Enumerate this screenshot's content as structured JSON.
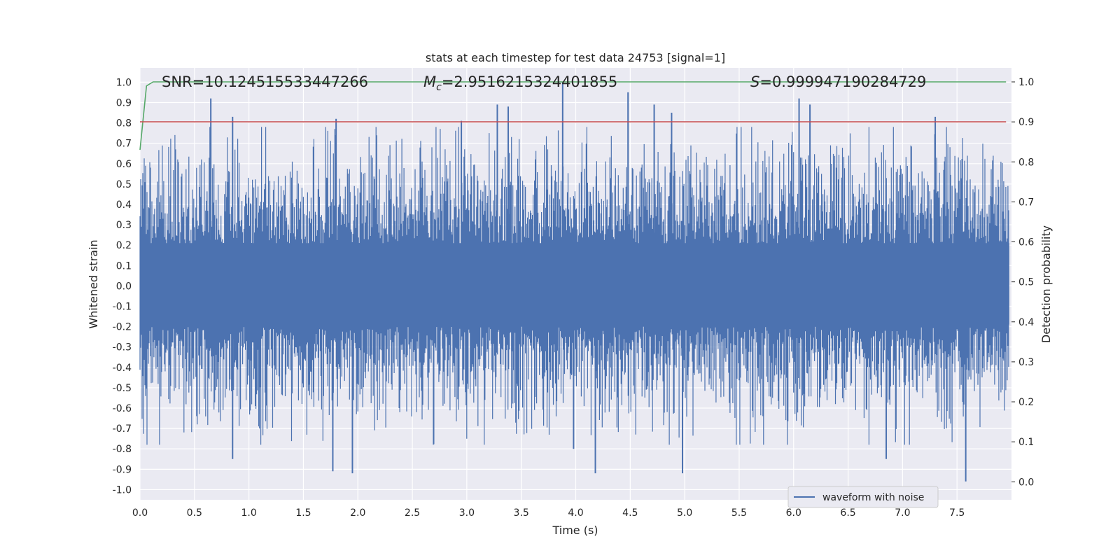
{
  "chart_data": {
    "type": "line",
    "title": "stats at each timestep for test data 24753 [signal=1]",
    "xlabel": "Time (s)",
    "ylabel": "Whitened strain",
    "y2label": "Detection probability",
    "xlim": [
      0.0,
      8.0
    ],
    "ylim": [
      -1.05,
      1.07
    ],
    "y2lim": [
      -0.045,
      1.035
    ],
    "x_ticks": [
      0.0,
      0.5,
      1.0,
      1.5,
      2.0,
      2.5,
      3.0,
      3.5,
      4.0,
      4.5,
      5.0,
      5.5,
      6.0,
      6.5,
      7.0,
      7.5
    ],
    "x_tick_labels": [
      "0.0",
      "0.5",
      "1.0",
      "1.5",
      "2.0",
      "2.5",
      "3.0",
      "3.5",
      "4.0",
      "4.5",
      "5.0",
      "5.5",
      "6.0",
      "6.5",
      "7.0",
      "7.5"
    ],
    "y_ticks": [
      1.0,
      0.9,
      0.8,
      0.7,
      0.6,
      0.5,
      0.4,
      0.3,
      0.2,
      0.1,
      0.0,
      -0.1,
      -0.2,
      -0.3,
      -0.4,
      -0.5,
      -0.6,
      -0.7,
      -0.8,
      -0.9,
      -1.0
    ],
    "y_tick_labels": [
      "1.0",
      "0.9",
      "0.8",
      "0.7",
      "0.6",
      "0.5",
      "0.4",
      "0.3",
      "0.2",
      "0.1",
      "0.0",
      "-0.1",
      "-0.2",
      "-0.3",
      "-0.4",
      "-0.5",
      "-0.6",
      "-0.7",
      "-0.8",
      "-0.9",
      "-1.0"
    ],
    "y2_ticks": [
      1.0,
      0.9,
      0.8,
      0.7,
      0.6,
      0.5,
      0.4,
      0.3,
      0.2,
      0.1,
      0.0
    ],
    "y2_tick_labels": [
      "1.0",
      "0.9",
      "0.8",
      "0.7",
      "0.6",
      "0.5",
      "0.4",
      "0.3",
      "0.2",
      "0.1",
      "0.0"
    ],
    "grid": true,
    "legend": "bottom-right",
    "series": [
      {
        "name": "waveform with noise",
        "axis": "left",
        "color": "#4c72b0",
        "style": "dense-noise",
        "amplitude_typical": 0.45,
        "peaks": [
          {
            "x": 0.65,
            "y": 0.92
          },
          {
            "x": 0.85,
            "y": 0.83
          },
          {
            "x": 1.8,
            "y": 0.82
          },
          {
            "x": 2.95,
            "y": 0.81
          },
          {
            "x": 3.28,
            "y": 0.89
          },
          {
            "x": 3.38,
            "y": 0.88
          },
          {
            "x": 3.88,
            "y": 1.0
          },
          {
            "x": 4.48,
            "y": 0.95
          },
          {
            "x": 4.72,
            "y": 0.89
          },
          {
            "x": 4.88,
            "y": 0.85
          },
          {
            "x": 6.05,
            "y": 0.92
          },
          {
            "x": 6.15,
            "y": 0.89
          },
          {
            "x": 7.3,
            "y": 0.83
          },
          {
            "x": 0.85,
            "y": -0.85
          },
          {
            "x": 1.77,
            "y": -0.91
          },
          {
            "x": 1.95,
            "y": -0.92
          },
          {
            "x": 3.98,
            "y": -0.8
          },
          {
            "x": 4.18,
            "y": -0.92
          },
          {
            "x": 4.98,
            "y": -0.92
          },
          {
            "x": 6.85,
            "y": -0.85
          },
          {
            "x": 7.58,
            "y": -0.96
          }
        ]
      },
      {
        "name": "",
        "axis": "right",
        "color": "#55a868",
        "x": [
          0.0,
          0.06,
          0.12,
          0.5,
          1.0,
          2.0,
          3.0,
          4.0,
          5.0,
          6.0,
          7.0,
          7.95
        ],
        "y": [
          0.83,
          0.99,
          1.0,
          1.0,
          1.0,
          1.0,
          1.0,
          1.0,
          1.0,
          1.0,
          1.0,
          1.0
        ]
      },
      {
        "name": "",
        "axis": "right",
        "color": "#c44e52",
        "x": [
          0.0,
          7.95
        ],
        "y": [
          0.9,
          0.9
        ]
      }
    ],
    "annotations": {
      "snr": "SNR=10.124515533447266",
      "mc_symbol": "M",
      "mc_subscript": "c",
      "mc_value": "=2.9516215324401855",
      "s_symbol": "S",
      "s_value": "=0.999947190284729"
    },
    "background_color": "#eaeaf2"
  }
}
